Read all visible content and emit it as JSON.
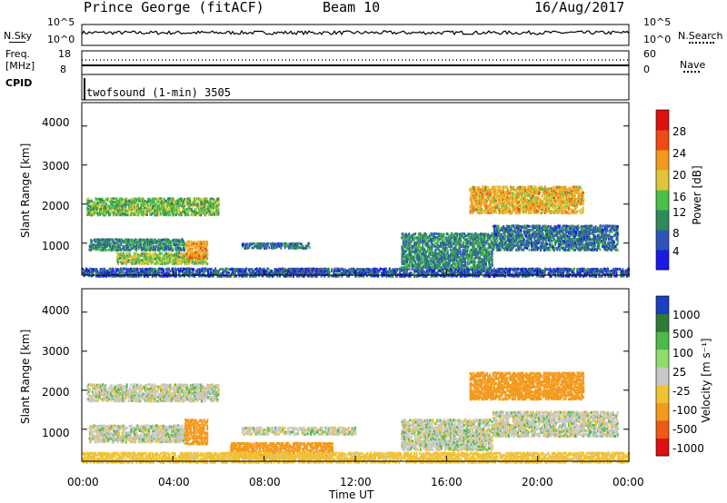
{
  "header": {
    "station": "Prince George (fitACF)",
    "beam": "Beam 10",
    "date": "16/Aug/2017"
  },
  "status_panels": {
    "nsky_label": "N.Sky",
    "nsky_ticks": [
      "10^5",
      "10^0"
    ],
    "nsearch_label": "N.Search",
    "nsearch_ticks": [
      "10^5",
      "10^0"
    ],
    "freq_label_1": "Freq.",
    "freq_label_2": "[MHz]",
    "freq_ticks": [
      "18",
      "8"
    ],
    "nave_label": "Nave",
    "nave_ticks": [
      "60",
      "0"
    ],
    "cpid_label": "CPID",
    "cpid_value": "twofsound (1-min) 3505"
  },
  "chart_data": [
    {
      "type": "heatmap",
      "panel": "power",
      "ylabel": "Slant Range [km]",
      "yticks": [
        "1000",
        "2000",
        "3000",
        "4000"
      ],
      "ylim": [
        180,
        4600
      ],
      "xlabel": "Time UT",
      "xticks": [
        "00:00",
        "04:00",
        "08:00",
        "12:00",
        "16:00",
        "20:00",
        "00:00"
      ],
      "xlim_hours": [
        0,
        24
      ],
      "colorbar_label": "Power [dB]",
      "colorbar_ticks": [
        "4",
        "8",
        "12",
        "16",
        "20",
        "24",
        "28"
      ],
      "colorbar_colors": [
        "#1a1ae6",
        "#2f55b8",
        "#2f8a5a",
        "#4bbf48",
        "#e0c53a",
        "#f39a1e",
        "#ee4a15",
        "#dd1010"
      ],
      "echo_regions": [
        {
          "t": [
            0.2,
            6.0
          ],
          "r": [
            1750,
            2200
          ],
          "level": 14
        },
        {
          "t": [
            0.3,
            4.5
          ],
          "r": [
            850,
            1150
          ],
          "level": 10
        },
        {
          "t": [
            1.5,
            5.5
          ],
          "r": [
            500,
            800
          ],
          "level": 16
        },
        {
          "t": [
            4.5,
            5.5
          ],
          "r": [
            650,
            1100
          ],
          "level": 22
        },
        {
          "t": [
            7.0,
            10.0
          ],
          "r": [
            900,
            1050
          ],
          "level": 8
        },
        {
          "t": [
            8.5,
            10.5
          ],
          "r": [
            250,
            400
          ],
          "level": 24
        },
        {
          "t": [
            0.0,
            24.0
          ],
          "r": [
            180,
            400
          ],
          "level": 6
        },
        {
          "t": [
            14.0,
            18.0
          ],
          "r": [
            400,
            1300
          ],
          "level": 10
        },
        {
          "t": [
            17.0,
            22.0
          ],
          "r": [
            1800,
            2500
          ],
          "level": 20
        },
        {
          "t": [
            18.0,
            23.5
          ],
          "r": [
            850,
            1500
          ],
          "level": 8
        }
      ]
    },
    {
      "type": "heatmap",
      "panel": "velocity",
      "ylabel": "Slant Range [km]",
      "yticks": [
        "1000",
        "2000",
        "3000",
        "4000"
      ],
      "ylim": [
        180,
        4600
      ],
      "xlabel": "Time UT",
      "xticks": [
        "00:00",
        "04:00",
        "08:00",
        "12:00",
        "16:00",
        "20:00",
        "00:00"
      ],
      "xlim_hours": [
        0,
        24
      ],
      "colorbar_label": "Velocity [m s⁻¹]",
      "colorbar_ticks": [
        "1000",
        "500",
        "100",
        "25",
        "-25",
        "-100",
        "-500",
        "-1000"
      ],
      "colorbar_colors": [
        "#1a3fc0",
        "#2f7a3a",
        "#4fb94a",
        "#8fdc6a",
        "#c8c8c8",
        "#f1c233",
        "#f39a1e",
        "#ee5a15",
        "#dd1010"
      ],
      "echo_regions": [
        {
          "t": [
            0.2,
            6.0
          ],
          "r": [
            1750,
            2200
          ],
          "v": 0
        },
        {
          "t": [
            0.3,
            4.5
          ],
          "r": [
            700,
            1150
          ],
          "v": 0
        },
        {
          "t": [
            4.5,
            5.5
          ],
          "r": [
            650,
            1300
          ],
          "v": -300
        },
        {
          "t": [
            6.5,
            11.0
          ],
          "r": [
            300,
            700
          ],
          "v": -200
        },
        {
          "t": [
            0.0,
            24.0
          ],
          "r": [
            180,
            450
          ],
          "v": -60
        },
        {
          "t": [
            7.0,
            12.0
          ],
          "r": [
            900,
            1100
          ],
          "v": 0
        },
        {
          "t": [
            14.0,
            18.0
          ],
          "r": [
            500,
            1300
          ],
          "v": 0
        },
        {
          "t": [
            17.0,
            22.0
          ],
          "r": [
            1800,
            2500
          ],
          "v": -400
        },
        {
          "t": [
            18.0,
            23.5
          ],
          "r": [
            850,
            1500
          ],
          "v": 0
        }
      ]
    }
  ],
  "title_x": "Time UT"
}
